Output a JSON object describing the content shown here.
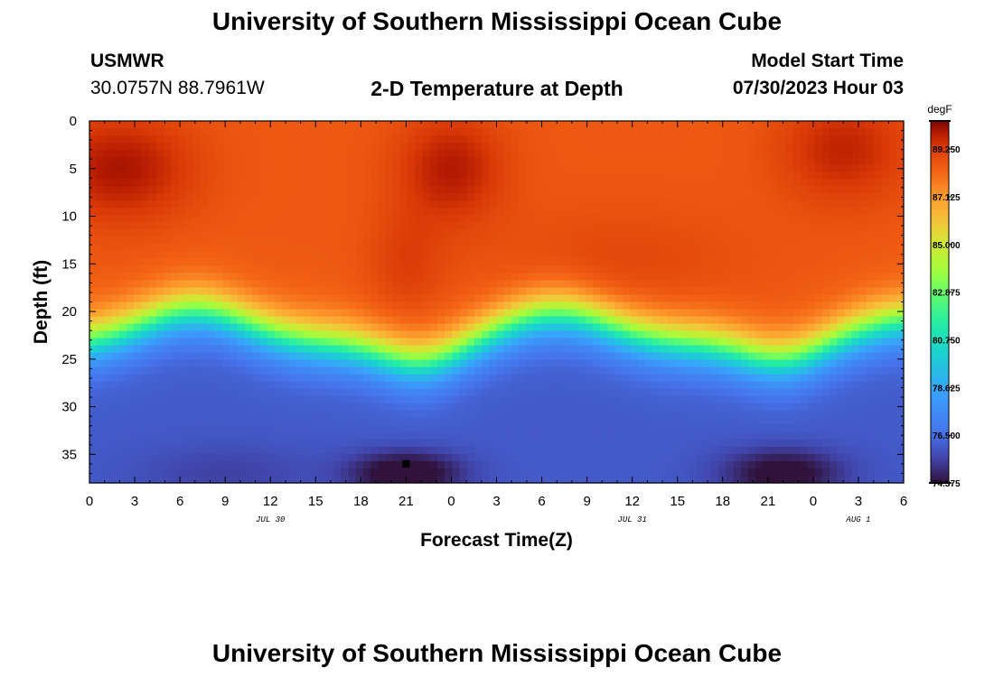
{
  "header": {
    "title": "University of Southern Mississippi Ocean Cube",
    "station": "USMWR",
    "coords": "30.0757N  88.7961W",
    "subtitle": "2-D Temperature at Depth",
    "model_label": "Model Start Time",
    "model_time": "07/30/2023 Hour 03"
  },
  "footer": {
    "title": "University of Southern Mississippi Ocean Cube"
  },
  "chart_data": {
    "type": "heatmap",
    "title": "2-D Temperature at Depth",
    "xlabel": "Forecast Time(Z)",
    "ylabel": "Depth (ft)",
    "x_hours_range": [
      0,
      54
    ],
    "x_tick_labels": [
      "0",
      "3",
      "6",
      "9",
      "12",
      "15",
      "18",
      "21",
      "0",
      "3",
      "6",
      "9",
      "12",
      "15",
      "18",
      "21",
      "0",
      "3",
      "6"
    ],
    "date_labels": [
      {
        "text": "JUL 30",
        "hour": 12
      },
      {
        "text": "JUL 31",
        "hour": 36
      },
      {
        "text": "AUG 1",
        "hour": 51
      }
    ],
    "y_range": [
      0,
      38
    ],
    "y_ticks": [
      0,
      5,
      10,
      15,
      20,
      25,
      30,
      35
    ],
    "colorbar": {
      "unit": "degF",
      "min": 74.375,
      "max": 90.5,
      "tick_values": [
        74.375,
        76.5,
        78.625,
        80.75,
        82.875,
        85.0,
        87.125,
        89.25
      ],
      "tick_labels": [
        "74.375",
        "76.500",
        "78.625",
        "80.750",
        "82.875",
        "85.000",
        "87.125",
        "89.250"
      ]
    },
    "marker": {
      "hour": 21,
      "depth": 36
    },
    "grid": false
  }
}
